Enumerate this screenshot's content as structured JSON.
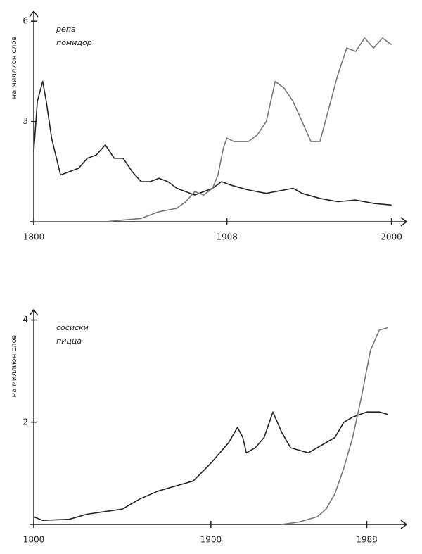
{
  "chart_data": [
    {
      "type": "line",
      "y_label": "на миллион слов",
      "xlim": [
        1800,
        2010
      ],
      "ylim": [
        0,
        6.3
      ],
      "xticks": [
        1800,
        1908,
        2000
      ],
      "yticks": [
        3,
        6
      ],
      "series": [
        {
          "name": "репа",
          "color": "#222222",
          "x": [
            1800,
            1802,
            1805,
            1807,
            1810,
            1815,
            1820,
            1825,
            1830,
            1835,
            1840,
            1845,
            1850,
            1855,
            1860,
            1865,
            1870,
            1875,
            1880,
            1885,
            1890,
            1895,
            1900,
            1905,
            1910,
            1920,
            1930,
            1940,
            1945,
            1950,
            1960,
            1970,
            1980,
            1990,
            2000
          ],
          "values": [
            2.1,
            3.6,
            4.2,
            3.6,
            2.5,
            1.4,
            1.5,
            1.6,
            1.9,
            2.0,
            2.3,
            1.9,
            1.9,
            1.5,
            1.2,
            1.2,
            1.3,
            1.2,
            1.0,
            0.9,
            0.8,
            0.9,
            1.0,
            1.2,
            1.1,
            0.95,
            0.85,
            0.95,
            1.0,
            0.85,
            0.7,
            0.6,
            0.65,
            0.55,
            0.5
          ]
        },
        {
          "name": "помидор",
          "color": "#777777",
          "x": [
            1800,
            1820,
            1840,
            1850,
            1860,
            1870,
            1880,
            1885,
            1890,
            1895,
            1900,
            1903,
            1906,
            1908,
            1912,
            1920,
            1925,
            1930,
            1935,
            1940,
            1945,
            1950,
            1955,
            1960,
            1965,
            1970,
            1975,
            1980,
            1985,
            1990,
            1995,
            2000
          ],
          "values": [
            0,
            0,
            0,
            0.05,
            0.1,
            0.3,
            0.4,
            0.6,
            0.9,
            0.8,
            1.0,
            1.4,
            2.2,
            2.5,
            2.4,
            2.4,
            2.6,
            3.0,
            4.2,
            4.0,
            3.6,
            3.0,
            2.4,
            2.4,
            3.4,
            4.4,
            5.2,
            5.1,
            5.5,
            5.2,
            5.5,
            5.3
          ]
        }
      ]
    },
    {
      "type": "line",
      "y_label": "на миллион слов",
      "xlim": [
        1800,
        2012
      ],
      "ylim": [
        0,
        4.2
      ],
      "xticks": [
        1800,
        1900,
        1988
      ],
      "yticks": [
        2,
        4
      ],
      "series": [
        {
          "name": "сосиски",
          "color": "#222222",
          "x": [
            1800,
            1805,
            1820,
            1830,
            1840,
            1850,
            1860,
            1870,
            1880,
            1890,
            1900,
            1910,
            1915,
            1918,
            1920,
            1925,
            1930,
            1935,
            1940,
            1945,
            1955,
            1960,
            1970,
            1975,
            1980,
            1988,
            1995,
            2000
          ],
          "values": [
            0.15,
            0.08,
            0.1,
            0.2,
            0.25,
            0.3,
            0.5,
            0.65,
            0.75,
            0.85,
            1.2,
            1.6,
            1.9,
            1.7,
            1.4,
            1.5,
            1.7,
            2.2,
            1.8,
            1.5,
            1.4,
            1.5,
            1.7,
            2.0,
            2.1,
            2.2,
            2.2,
            2.15
          ]
        },
        {
          "name": "пицца",
          "color": "#777777",
          "x": [
            1940,
            1950,
            1960,
            1965,
            1970,
            1975,
            1980,
            1985,
            1990,
            1995,
            2000
          ],
          "values": [
            0,
            0.05,
            0.15,
            0.3,
            0.6,
            1.1,
            1.7,
            2.5,
            3.4,
            3.8,
            3.85
          ]
        }
      ]
    }
  ]
}
